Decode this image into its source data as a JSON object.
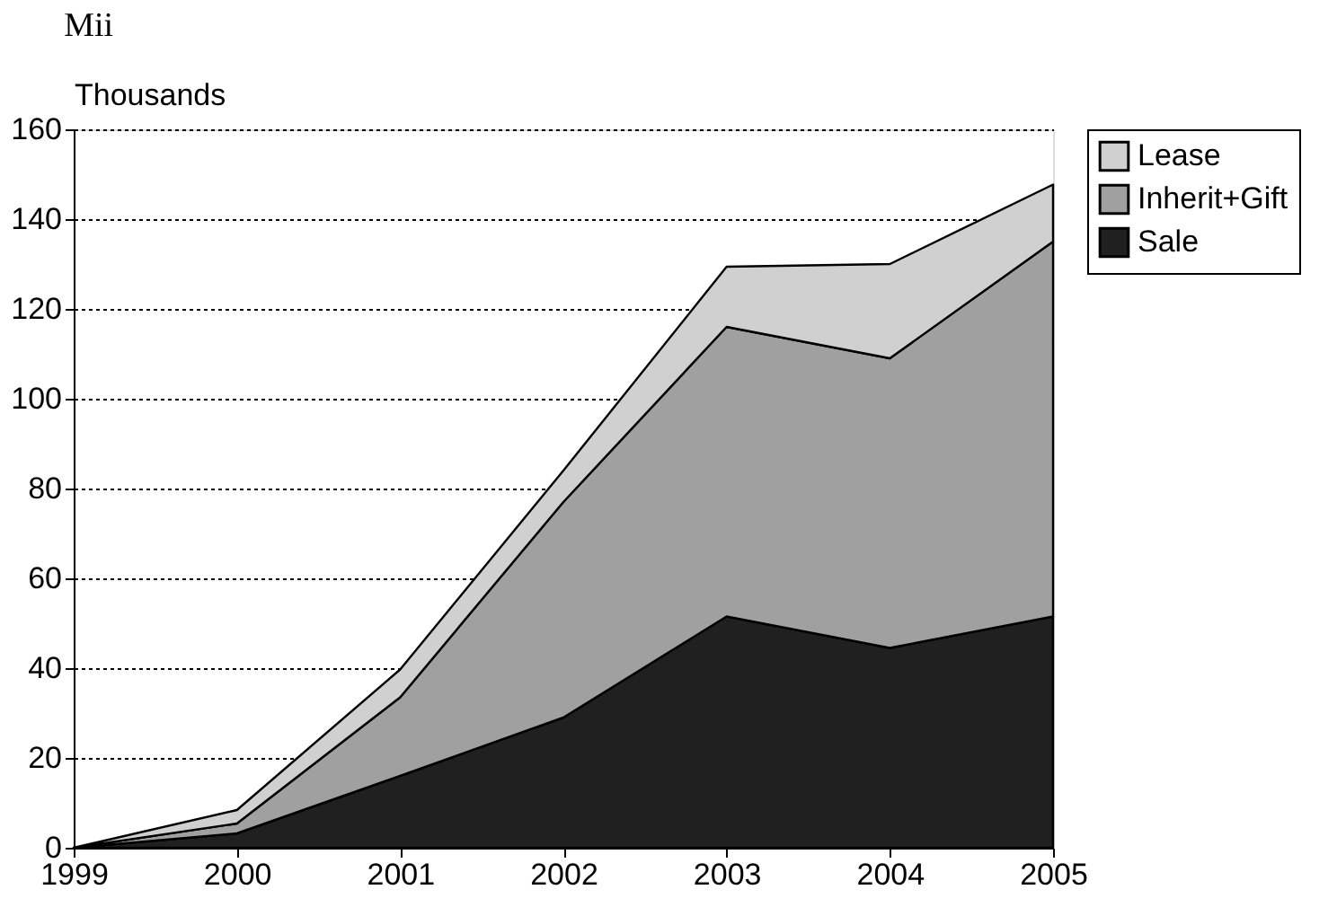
{
  "chart_data": {
    "type": "area",
    "title": "Mii",
    "ylabel": "Thousands",
    "stacked": true,
    "x": [
      1999,
      2000,
      2001,
      2002,
      2003,
      2004,
      2005
    ],
    "series": [
      {
        "name": "Sale",
        "color": "#202020",
        "values": [
          0,
          3.2,
          16,
          29,
          51.5,
          44.5,
          51.5
        ]
      },
      {
        "name": "Inherit+Gift",
        "color": "#a0a0a0",
        "values": [
          0,
          2.2,
          17.5,
          48,
          64.5,
          64.5,
          83.5
        ]
      },
      {
        "name": "Lease",
        "color": "#d0d0d0",
        "values": [
          0,
          3,
          6.2,
          7,
          13.4,
          21,
          12.7
        ]
      }
    ],
    "xlim": [
      1999,
      2005
    ],
    "xticks": [
      1999,
      2000,
      2001,
      2002,
      2003,
      2004,
      2005
    ],
    "ylim": [
      0,
      160
    ],
    "yticks": [
      0,
      20,
      40,
      60,
      80,
      100,
      120,
      140,
      160
    ],
    "grid": "y",
    "legend": "right",
    "line_style": "solid"
  }
}
